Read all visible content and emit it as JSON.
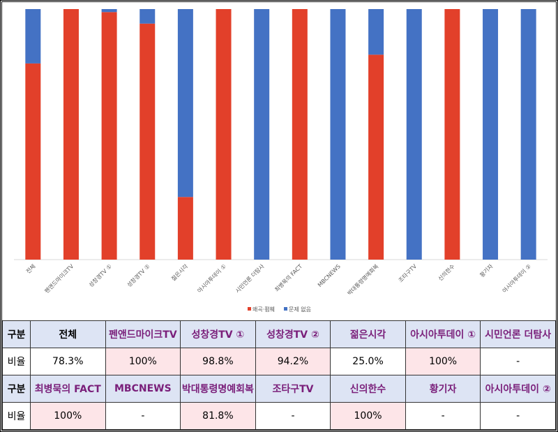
{
  "chart_data": {
    "type": "bar",
    "stacked": true,
    "normalized": true,
    "categories": [
      "전체",
      "펜앤드마이크TV",
      "성창경TV ①",
      "성창경TV ②",
      "젊은시각",
      "아시아투데이 ①",
      "시민언론 더탐사",
      "최병묵의 FACT",
      "MBCNEWS",
      "박대통령명예회복",
      "조타구TV",
      "신의한수",
      "황기자",
      "아시아투데이 ②"
    ],
    "series": [
      {
        "name": "왜곡·폄훼",
        "color": "#e2402a",
        "values": [
          78.3,
          100,
          98.8,
          94.2,
          25.0,
          100,
          0,
          100,
          0,
          81.8,
          0,
          100,
          0,
          0
        ]
      },
      {
        "name": "문제 없음",
        "color": "#4472c4",
        "values": [
          21.7,
          0,
          1.2,
          5.8,
          75.0,
          0,
          100,
          0,
          100,
          18.2,
          100,
          0,
          100,
          100
        ]
      }
    ],
    "ylim": [
      0,
      100
    ],
    "grid": false,
    "legend": "bottom"
  },
  "table": {
    "rows": [
      {
        "label": "구분",
        "cells": [
          "전체",
          "펜앤드마이크TV",
          "성창경TV ①",
          "성창경TV ②",
          "젊은시각",
          "아시아투데이 ①",
          "시민언론 더탐사"
        ]
      },
      {
        "label": "비율",
        "cells": [
          "78.3%",
          "100%",
          "98.8%",
          "94.2%",
          "25.0%",
          "100%",
          "-"
        ]
      },
      {
        "label": "구분",
        "cells": [
          "최병묵의 FACT",
          "MBCNEWS",
          "박대통령명예회복",
          "조타구TV",
          "신의한수",
          "황기자",
          "아시아투데이 ②"
        ]
      },
      {
        "label": "비율",
        "cells": [
          "100%",
          "-",
          "81.8%",
          "-",
          "100%",
          "-",
          "-"
        ]
      }
    ]
  }
}
